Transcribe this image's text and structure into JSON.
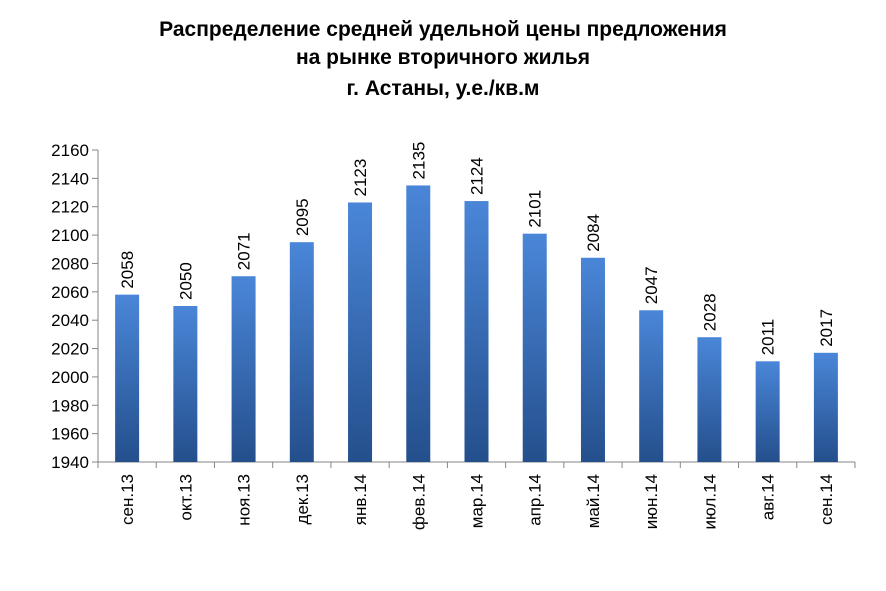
{
  "chart_data": {
    "type": "bar",
    "title_lines": [
      "Распределение средней удельной цены предложения",
      "на рынке вторичного жилья",
      "г. Астаны, у.е./кв.м"
    ],
    "categories": [
      "сен.13",
      "окт.13",
      "ноя.13",
      "дек.13",
      "янв.14",
      "фев.14",
      "мар.14",
      "апр.14",
      "май.14",
      "июн.14",
      "июл.14",
      "авг.14",
      "сен.14"
    ],
    "values": [
      2058,
      2050,
      2071,
      2095,
      2123,
      2135,
      2124,
      2101,
      2084,
      2047,
      2028,
      2011,
      2017
    ],
    "ylim": [
      1940,
      2160
    ],
    "yticks": [
      1940,
      1960,
      1980,
      2000,
      2020,
      2040,
      2060,
      2080,
      2100,
      2120,
      2140,
      2160
    ],
    "grid": false,
    "legend": "none",
    "data_labels": true,
    "bar_color_top": "#4a86d8",
    "bar_color_bottom": "#244f8c"
  }
}
